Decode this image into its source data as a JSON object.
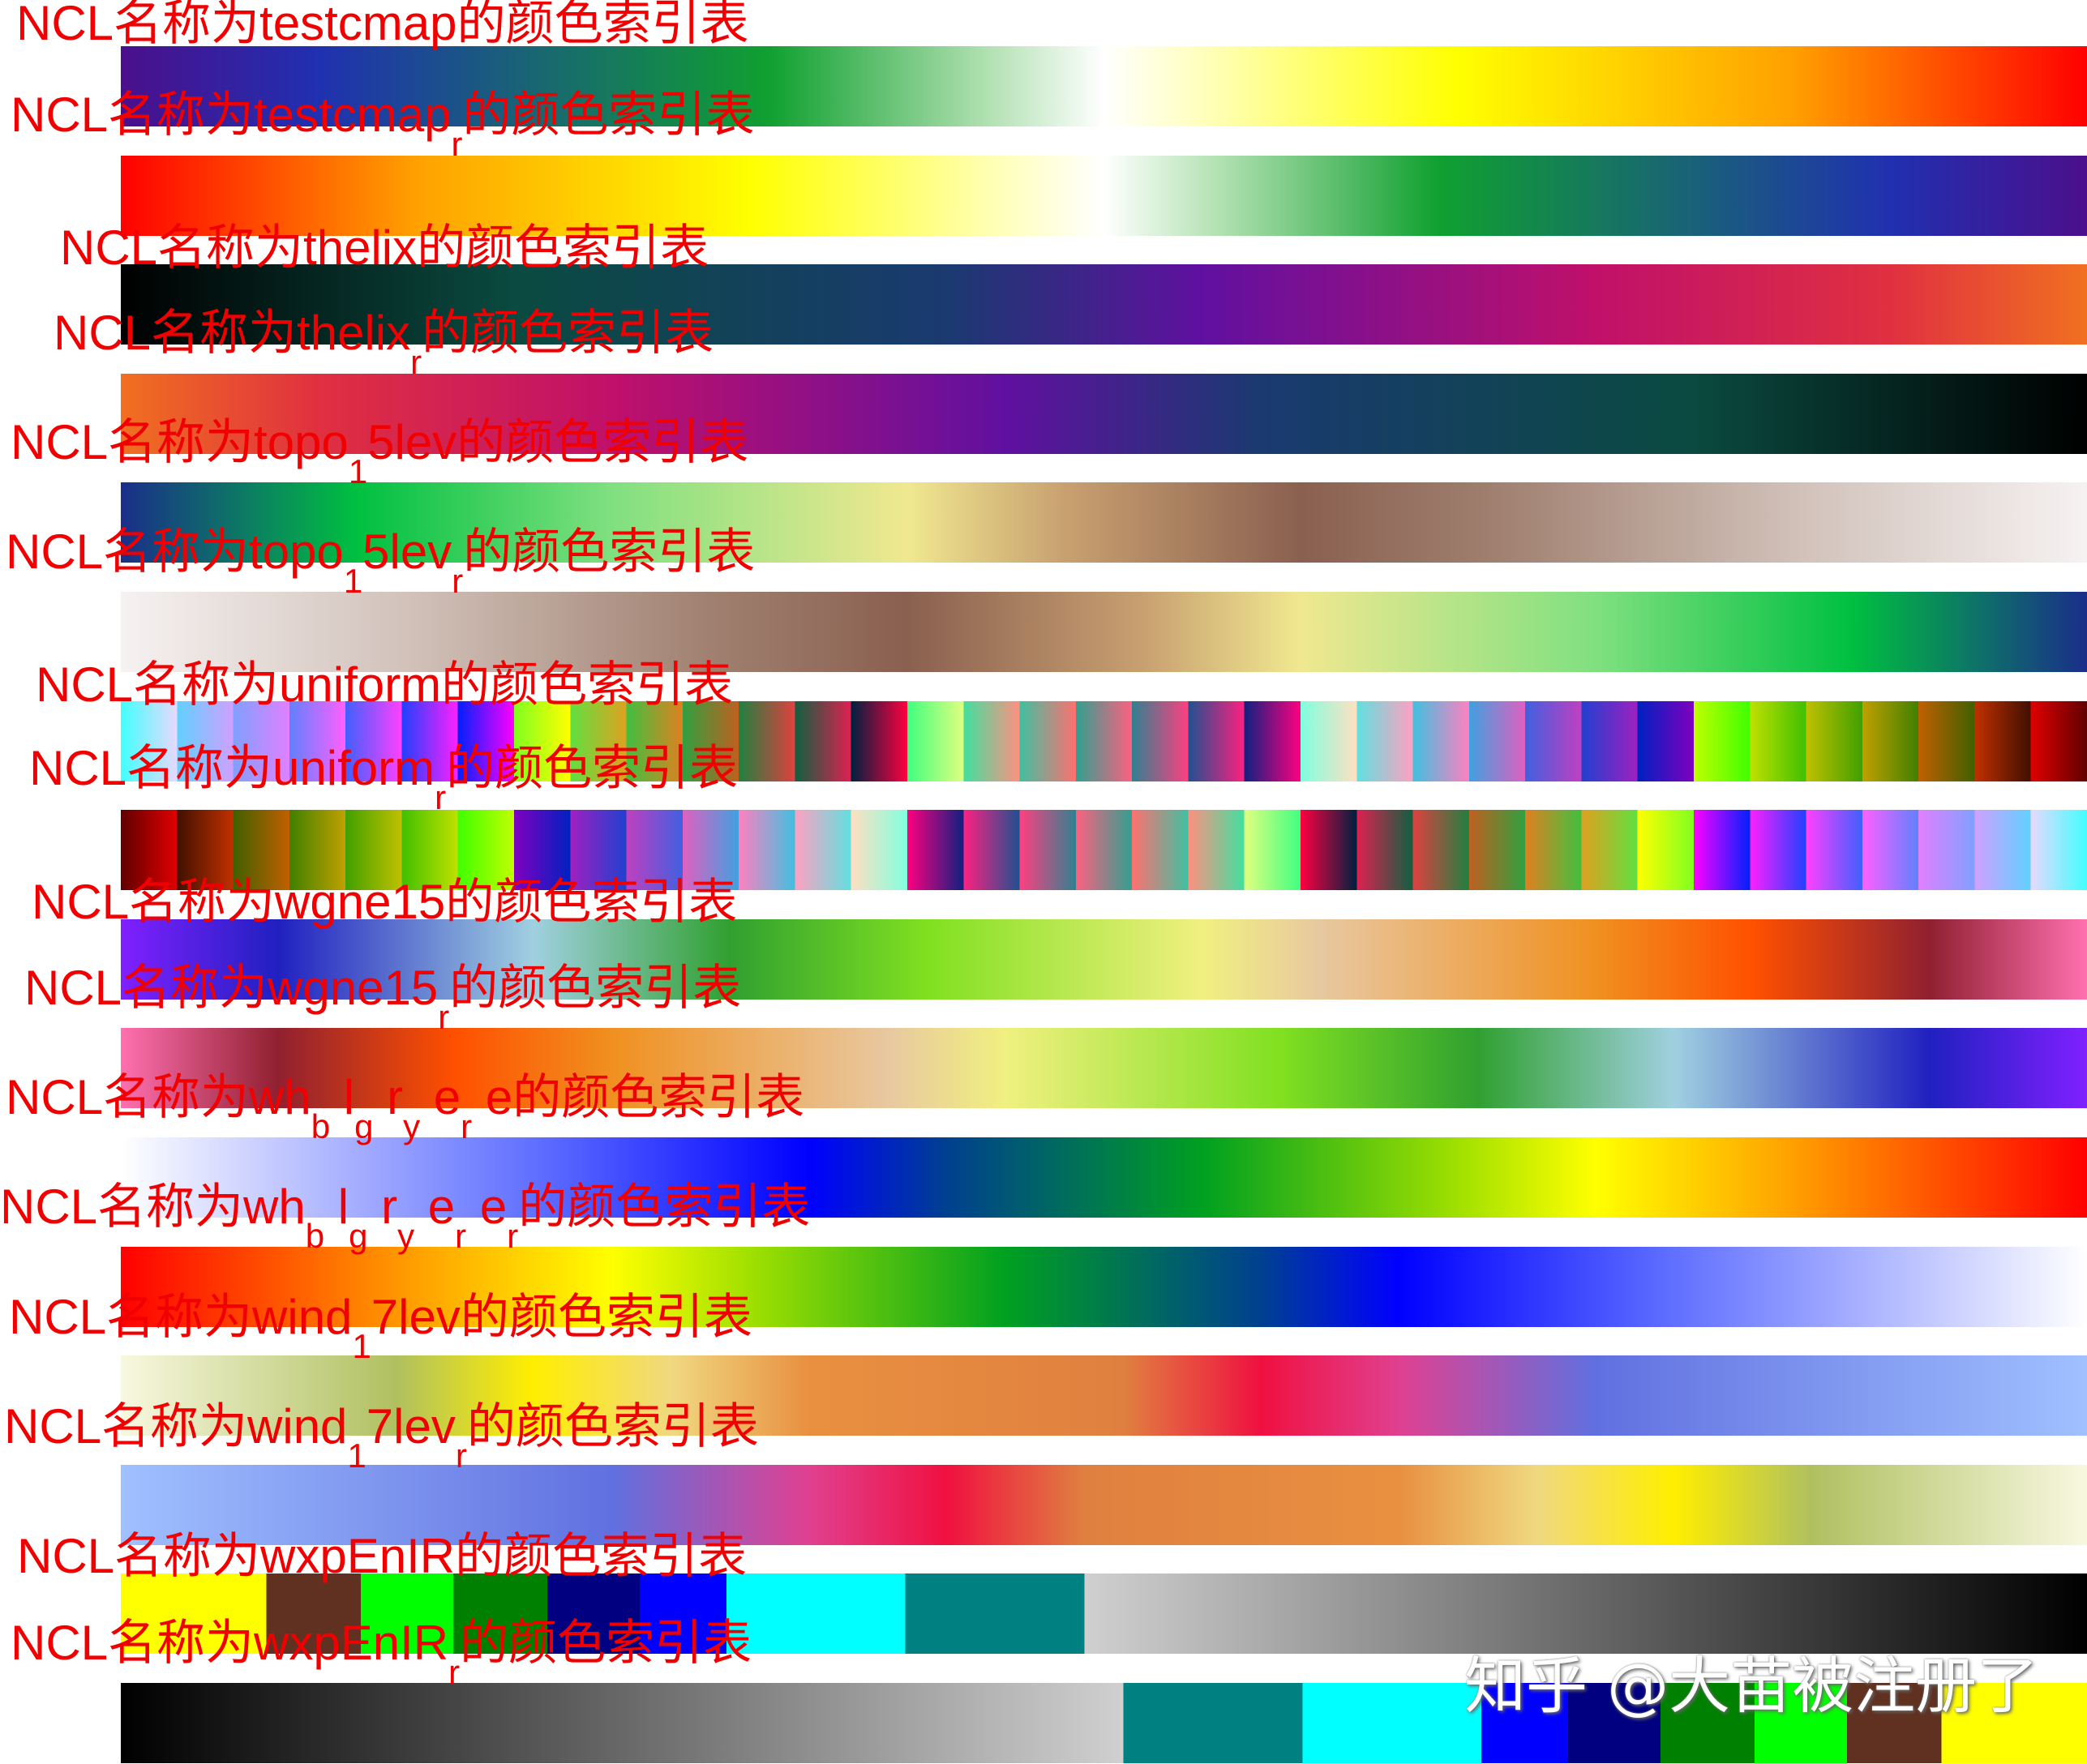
{
  "chart_data": {
    "type": "colormap-strips",
    "colormaps": [
      {
        "name": "testcmap",
        "label": [
          {
            "t": "NCL名称为testcmap的颜色索引表"
          }
        ],
        "stops": [
          [
            "#4b0f8c",
            0
          ],
          [
            "#2030b0",
            10
          ],
          [
            "#10a030",
            33
          ],
          [
            "#b0e0b0",
            44
          ],
          [
            "#ffffff",
            50
          ],
          [
            "#ffffb0",
            56
          ],
          [
            "#ffff00",
            68
          ],
          [
            "#ffa000",
            85
          ],
          [
            "#ff0000",
            100
          ]
        ]
      },
      {
        "name": "testcmap_r",
        "label": [
          {
            "t": "NCL名称为testcmap"
          },
          {
            "s": "r"
          },
          {
            "t": "的颜色索引表"
          }
        ],
        "reverse_of": 0
      },
      {
        "name": "thelix",
        "label": [
          {
            "t": "NCL名称为thelix的颜色索引表"
          }
        ],
        "stops": [
          [
            "#000000",
            0
          ],
          [
            "#0a4a40",
            20
          ],
          [
            "#1a3a70",
            42
          ],
          [
            "#6010a0",
            55
          ],
          [
            "#c0106a",
            75
          ],
          [
            "#e03040",
            90
          ],
          [
            "#f07020",
            100
          ]
        ]
      },
      {
        "name": "thelix_r",
        "label": [
          {
            "t": "NCL名称为thelix"
          },
          {
            "s": "r"
          },
          {
            "t": "的颜色索引表"
          }
        ],
        "reverse_of": 2
      },
      {
        "name": "topo_15lev",
        "label": [
          {
            "t": "NCL名称为topo"
          },
          {
            "s": "1"
          },
          {
            "t": "5lev的颜色索引表"
          }
        ],
        "stops": [
          [
            "#1a2e8a",
            0
          ],
          [
            "#00c040",
            12
          ],
          [
            "#80e080",
            25
          ],
          [
            "#f0e890",
            40
          ],
          [
            "#c8a070",
            48
          ],
          [
            "#8a6050",
            60
          ],
          [
            "#a08070",
            70
          ],
          [
            "#d0c0b8",
            85
          ],
          [
            "#f6f2f2",
            100
          ]
        ]
      },
      {
        "name": "topo_15lev_r",
        "label": [
          {
            "t": "NCL名称为topo"
          },
          {
            "s": "1"
          },
          {
            "t": "5lev"
          },
          {
            "s": "r"
          },
          {
            "t": "的颜色索引表"
          }
        ],
        "reverse_of": 4
      },
      {
        "name": "uniform",
        "label": [
          {
            "t": "NCL名称为uniform的颜色索引表"
          }
        ],
        "stripes": [
          [
            "#40ffff",
            "#e8d8ff"
          ],
          [
            "#60d0ff",
            "#d0a0ff"
          ],
          [
            "#80a0ff",
            "#e080ff"
          ],
          [
            "#6080ff",
            "#ff60ff"
          ],
          [
            "#4060ff",
            "#ff40ff"
          ],
          [
            "#2040ff",
            "#ff20ff"
          ],
          [
            "#0020ff",
            "#ff00ff"
          ],
          [
            "#80ff20",
            "#ffff00"
          ],
          [
            "#60e040",
            "#e0a020"
          ],
          [
            "#40c040",
            "#e08020"
          ],
          [
            "#30a040",
            "#c06020"
          ],
          [
            "#208040",
            "#e04040"
          ],
          [
            "#106040",
            "#e02050"
          ],
          [
            "#002040",
            "#ff0040"
          ],
          [
            "#40ff80",
            "#e0ff80"
          ],
          [
            "#40e0a0",
            "#ff9080"
          ],
          [
            "#40c0a0",
            "#ff7070"
          ],
          [
            "#30a090",
            "#ff6080"
          ],
          [
            "#308090",
            "#ff4080"
          ],
          [
            "#205090",
            "#ff2080"
          ],
          [
            "#102080",
            "#ff0080"
          ],
          [
            "#80ffe0",
            "#ffe0c0"
          ],
          [
            "#60e0e0",
            "#ffa0c0"
          ],
          [
            "#40c0e0",
            "#ff80c0"
          ],
          [
            "#40a0e0",
            "#e060c0"
          ],
          [
            "#4060e0",
            "#c040c0"
          ],
          [
            "#2040d0",
            "#a020c0"
          ],
          [
            "#0020c0",
            "#8000c0"
          ],
          [
            "#c0ff00",
            "#40ff00"
          ],
          [
            "#c0e000",
            "#40c000"
          ],
          [
            "#c0c000",
            "#40a000"
          ],
          [
            "#c0a000",
            "#408000"
          ],
          [
            "#c06000",
            "#406000"
          ],
          [
            "#c03000",
            "#401000"
          ],
          [
            "#e00000",
            "#600000"
          ]
        ]
      },
      {
        "name": "uniform_r",
        "label": [
          {
            "t": "NCL名称为uniform"
          },
          {
            "s": "r"
          },
          {
            "t": "的颜色索引表"
          }
        ],
        "reverse_of": 6
      },
      {
        "name": "wgne15",
        "label": [
          {
            "t": "NCL名称为wgne15的颜色索引表"
          }
        ],
        "stops": [
          [
            "#8020ff",
            0
          ],
          [
            "#2020c0",
            8
          ],
          [
            "#a0d0e0",
            21
          ],
          [
            "#30a030",
            31
          ],
          [
            "#80e020",
            41
          ],
          [
            "#f0f080",
            55
          ],
          [
            "#e8c8a0",
            61
          ],
          [
            "#f09020",
            75
          ],
          [
            "#ff5000",
            83
          ],
          [
            "#902030",
            92
          ],
          [
            "#ff70b0",
            100
          ]
        ]
      },
      {
        "name": "wgne15_r",
        "label": [
          {
            "t": "NCL名称为wgne15"
          },
          {
            "s": "r"
          },
          {
            "t": "的颜色索引表"
          }
        ],
        "reverse_of": 8
      },
      {
        "name": "wh-bl-gr-ye-re",
        "label": [
          {
            "t": "NCL名称为wh"
          },
          {
            "s": "b"
          },
          {
            "t": " l"
          },
          {
            "s": "g"
          },
          {
            "t": " r"
          },
          {
            "s": "y"
          },
          {
            "t": " e"
          },
          {
            "s": "r"
          },
          {
            "t": " e的颜色索引表"
          }
        ],
        "stops": [
          [
            "#ffffff",
            0
          ],
          [
            "#6070ff",
            21
          ],
          [
            "#0000ff",
            35
          ],
          [
            "#004090",
            42
          ],
          [
            "#00a020",
            55
          ],
          [
            "#a0e000",
            68
          ],
          [
            "#ffff00",
            75
          ],
          [
            "#ffa000",
            85
          ],
          [
            "#ff0000",
            100
          ]
        ]
      },
      {
        "name": "wh-bl-gr-ye-re_r",
        "label": [
          {
            "t": "NCL名称为wh"
          },
          {
            "s": "b"
          },
          {
            "t": " l"
          },
          {
            "s": "g"
          },
          {
            "t": " r"
          },
          {
            "s": "y"
          },
          {
            "t": " e"
          },
          {
            "s": "r"
          },
          {
            "t": " e"
          },
          {
            "s": "r"
          },
          {
            "t": "的颜色索引表"
          }
        ],
        "reverse_of": 10
      },
      {
        "name": "wind_17lev",
        "label": [
          {
            "t": "NCL名称为wind"
          },
          {
            "s": "1"
          },
          {
            "t": "7lev的颜色索引表"
          }
        ],
        "stops": [
          [
            "#f8f8e0",
            0
          ],
          [
            "#b0c060",
            14
          ],
          [
            "#ffee00",
            21
          ],
          [
            "#f0d880",
            28
          ],
          [
            "#e89040",
            35
          ],
          [
            "#e08040",
            51
          ],
          [
            "#f01040",
            58
          ],
          [
            "#e04090",
            65
          ],
          [
            "#6070e0",
            75
          ],
          [
            "#a0c0ff",
            100
          ]
        ]
      },
      {
        "name": "wind_17lev_r",
        "label": [
          {
            "t": "NCL名称为wind"
          },
          {
            "s": "1"
          },
          {
            "t": "7lev"
          },
          {
            "s": "r"
          },
          {
            "t": "的颜色索引表"
          }
        ],
        "reverse_of": 12
      },
      {
        "name": "wxpEnIR",
        "label": [
          {
            "t": "NCL名称为wxpEnIR的颜色索引表"
          }
        ],
        "stops": [
          [
            "#ffff00",
            0
          ],
          [
            "#ffff00",
            7.4
          ],
          [
            "#603020",
            7.4
          ],
          [
            "#603020",
            12.2
          ],
          [
            "#00ff00",
            12.2
          ],
          [
            "#00ff00",
            16.9
          ],
          [
            "#008000",
            16.9
          ],
          [
            "#008000",
            21.7
          ],
          [
            "#000080",
            21.7
          ],
          [
            "#000080",
            26.4
          ],
          [
            "#0000ff",
            26.4
          ],
          [
            "#0000ff",
            30.8
          ],
          [
            "#00ffff",
            30.8
          ],
          [
            "#00ffff",
            39.9
          ],
          [
            "#008080",
            39.9
          ],
          [
            "#008080",
            49
          ],
          [
            "#d0d0d0",
            49
          ],
          [
            "#000000",
            100
          ]
        ]
      },
      {
        "name": "wxpEnIR_r",
        "label": [
          {
            "t": "NCL名称为wxpEnIR"
          },
          {
            "s": "r"
          },
          {
            "t": "的颜色索引表"
          }
        ],
        "reverse_of": 14
      }
    ]
  },
  "watermark": "知乎 @大苗被注册了"
}
